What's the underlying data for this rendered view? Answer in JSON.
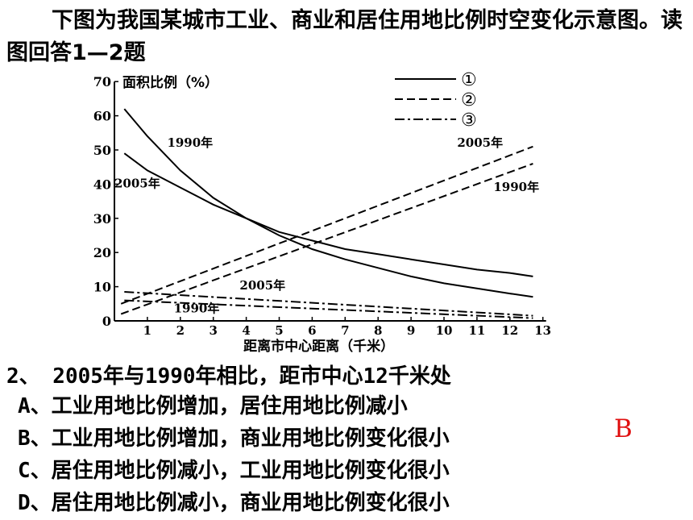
{
  "intro_text": "下图为我国某城市工业、商业和居住用地比例时空变化示意图。读图回答1—2题",
  "question": {
    "stem": "2、 2005年与1990年相比，距市中心12千米处",
    "options": [
      "A、工业用地比例增加，居住用地比例减小",
      "B、工业用地比例增加，商业用地比例变化很小",
      "C、居住用地比例减小，工业用地比例变化很小",
      "D、居住用地比例减小，商业用地比例变化很小"
    ],
    "answer": "B"
  },
  "chart_data": {
    "type": "line",
    "ylabel": "面积比例（%）",
    "xlabel": "距离市中心距离（千米）",
    "xlim": [
      0,
      13
    ],
    "ylim": [
      0,
      70
    ],
    "x_ticks": [
      1,
      2,
      3,
      4,
      5,
      6,
      7,
      8,
      9,
      10,
      11,
      12,
      13
    ],
    "y_ticks": [
      0,
      10,
      20,
      30,
      40,
      50,
      60,
      70
    ],
    "grid": false,
    "legend": {
      "placement": "top-right",
      "entries": [
        {
          "label": "①",
          "style": "solid"
        },
        {
          "label": "②",
          "style": "dashed"
        },
        {
          "label": "③",
          "style": "dashdot"
        }
      ]
    },
    "series": [
      {
        "legend": "①",
        "year_label": "1990年",
        "style": "solid",
        "points": [
          [
            0.3,
            62
          ],
          [
            1,
            54
          ],
          [
            2,
            44
          ],
          [
            3,
            36
          ],
          [
            4,
            30
          ],
          [
            5,
            25
          ],
          [
            6,
            21
          ],
          [
            7,
            18
          ],
          [
            8,
            15.5
          ],
          [
            9,
            13
          ],
          [
            10,
            11
          ],
          [
            11,
            9.5
          ],
          [
            12,
            8
          ],
          [
            12.7,
            7
          ]
        ],
        "label_pos": [
          1.6,
          51
        ]
      },
      {
        "legend": "①",
        "year_label": "2005年",
        "style": "solid",
        "points": [
          [
            0.3,
            49
          ],
          [
            1,
            44
          ],
          [
            2,
            39
          ],
          [
            3,
            34
          ],
          [
            4,
            30
          ],
          [
            5,
            26
          ],
          [
            6,
            23.5
          ],
          [
            7,
            21
          ],
          [
            8,
            19.5
          ],
          [
            9,
            18
          ],
          [
            10,
            16.5
          ],
          [
            11,
            15
          ],
          [
            12,
            14
          ],
          [
            12.7,
            13
          ]
        ],
        "label_pos": [
          0,
          39
        ]
      },
      {
        "legend": "②",
        "year_label": "2005年",
        "style": "dashed",
        "points": [
          [
            0.2,
            5
          ],
          [
            12.7,
            51
          ]
        ],
        "label_pos": [
          10.4,
          51
        ]
      },
      {
        "legend": "②",
        "year_label": "1990年",
        "style": "dashed",
        "points": [
          [
            0.2,
            2
          ],
          [
            12.7,
            46
          ]
        ],
        "label_pos": [
          11.5,
          38
        ]
      },
      {
        "legend": "③",
        "year_label": "2005年",
        "style": "dashdot",
        "points": [
          [
            0.3,
            8.5
          ],
          [
            12.7,
            1.5
          ]
        ],
        "label_pos": [
          3.8,
          9.2
        ]
      },
      {
        "legend": "③",
        "year_label": "1990年",
        "style": "dashdot",
        "points": [
          [
            0.3,
            6
          ],
          [
            12.7,
            0.8
          ]
        ],
        "label_pos": [
          1.8,
          2.5
        ]
      }
    ]
  }
}
